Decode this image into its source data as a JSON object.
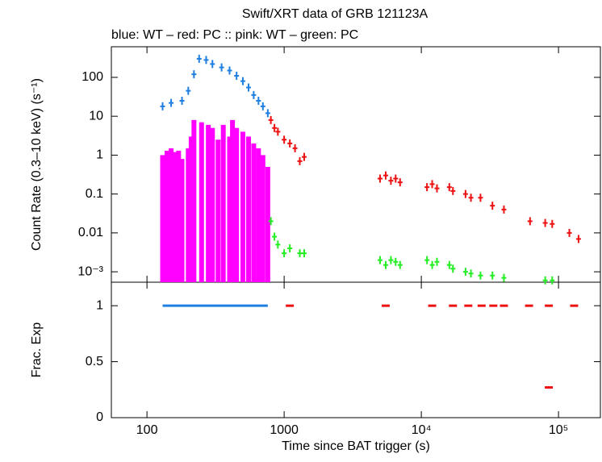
{
  "chart_data": [
    {
      "type": "scatter",
      "title": "Swift/XRT data of GRB 121123A",
      "subtitle": "blue: WT  – red: PC  :: pink: WT  – green: PC",
      "ylabel": "Count Rate (0.3–10 keV) (s⁻¹)",
      "log_x": true,
      "log_y": true,
      "xlim": [
        55,
        202000
      ],
      "ylim": [
        0.00054,
        612
      ],
      "yticks": [
        100,
        10,
        1,
        0.1,
        0.01,
        {
          "value": 0.001,
          "label": "10⁻³"
        }
      ],
      "series": [
        {
          "color": "#1f7fe0",
          "x": [
            130,
            150,
            180,
            200,
            220,
            240,
            270,
            300,
            350,
            400,
            450,
            500,
            550,
            600,
            650,
            700,
            760
          ],
          "values": [
            18,
            22,
            25,
            45,
            120,
            300,
            280,
            220,
            180,
            150,
            110,
            80,
            55,
            35,
            25,
            18,
            12
          ]
        },
        {
          "color": "#ff00ff",
          "error_to_axis": true,
          "x": [
            130,
            140,
            150,
            160,
            170,
            180,
            200,
            210,
            220,
            250,
            280,
            300,
            330,
            360,
            400,
            420,
            450,
            500,
            550,
            600,
            650,
            700,
            760
          ],
          "values": [
            1,
            1.3,
            1.5,
            1.2,
            1.3,
            0.8,
            1.5,
            3,
            8,
            7,
            6,
            5,
            2.5,
            6,
            3,
            8,
            5,
            4,
            3,
            2,
            1.5,
            1,
            0.5
          ]
        },
        {
          "color": "#ee1111",
          "x": [
            800,
            850,
            900,
            1000,
            1100,
            1200,
            1300,
            1400,
            5000,
            5500,
            6000,
            6500,
            7000,
            11000,
            12000,
            13000,
            16000,
            17000,
            21000,
            23000,
            27000,
            33000,
            40000,
            62000,
            80000,
            90000,
            120000,
            140000
          ],
          "values": [
            8,
            5,
            4,
            2.5,
            2,
            1.5,
            0.7,
            0.9,
            0.25,
            0.3,
            0.22,
            0.25,
            0.2,
            0.15,
            0.18,
            0.14,
            0.15,
            0.12,
            0.1,
            0.08,
            0.08,
            0.05,
            0.04,
            0.02,
            0.018,
            0.017,
            0.01,
            0.007
          ]
        },
        {
          "color": "#22ee22",
          "x": [
            800,
            850,
            900,
            1000,
            1100,
            1300,
            1400,
            5000,
            5500,
            6000,
            6500,
            7000,
            11000,
            12000,
            13000,
            16000,
            17000,
            21000,
            23000,
            27000,
            33000,
            40000,
            80000,
            90000
          ],
          "values": [
            0.02,
            0.008,
            0.005,
            0.003,
            0.004,
            0.003,
            0.003,
            0.002,
            0.0015,
            0.002,
            0.0018,
            0.0015,
            0.002,
            0.0015,
            0.0018,
            0.0015,
            0.0012,
            0.001,
            0.0009,
            0.0008,
            0.0008,
            0.0007,
            0.0006,
            0.0006
          ]
        }
      ]
    },
    {
      "type": "line",
      "xlabel": "Time since BAT trigger (s)",
      "ylabel": "Frac. Exp",
      "log_x": true,
      "xlim": [
        55,
        202000
      ],
      "ylim": [
        0,
        1.21
      ],
      "xticks": [
        100,
        1000,
        {
          "value": 10000,
          "label": "10⁴"
        },
        {
          "value": 100000,
          "label": "10⁵"
        }
      ],
      "yticks": [
        0,
        0.5,
        1
      ],
      "series": [
        {
          "color": "#1f7fe0",
          "style": "line",
          "x": [
            130,
            760
          ],
          "values": [
            1,
            1
          ]
        },
        {
          "color": "#ee1111",
          "style": "dash",
          "x": [
            1100,
            5500,
            12000,
            17000,
            22000,
            27500,
            33500,
            40000,
            61000,
            85000,
            85000,
            130000
          ],
          "values": [
            1,
            1,
            1,
            1,
            1,
            1,
            1,
            1,
            1,
            1,
            0.27,
            1
          ]
        }
      ]
    }
  ]
}
